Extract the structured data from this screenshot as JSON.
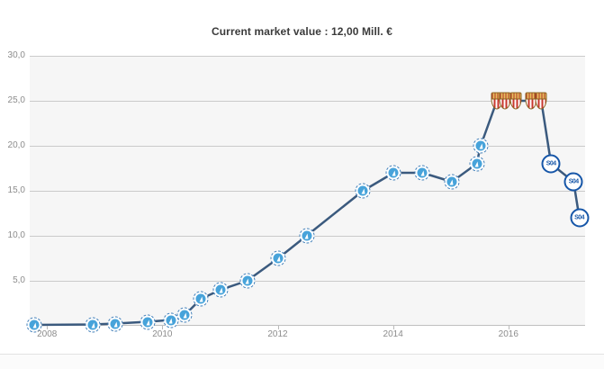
{
  "header": {
    "title": "Current market value : 12,00 Mill. €"
  },
  "chart_data": {
    "type": "line",
    "title": "Current market value : 12,00 Mill. €",
    "xlabel": "",
    "ylabel": "",
    "xlim": [
      2007.7,
      2017.33
    ],
    "ylim": [
      0,
      30
    ],
    "grid": true,
    "legend": "none",
    "line_color": "#3b5a7e",
    "plot_bg": "#f6f6f6",
    "grid_color": "#cbcbcb",
    "y_ticks": [
      {
        "value": 30,
        "label": "30,0"
      },
      {
        "value": 25,
        "label": "25,0"
      },
      {
        "value": 20,
        "label": "20,0"
      },
      {
        "value": 15,
        "label": "15,0"
      },
      {
        "value": 10,
        "label": "10,0"
      },
      {
        "value": 5,
        "label": "5,0"
      }
    ],
    "x_ticks": [
      {
        "year": 2008,
        "label": "2008"
      },
      {
        "year": 2010,
        "label": "2010"
      },
      {
        "year": 2012,
        "label": "2012"
      },
      {
        "year": 2014,
        "label": "2014"
      },
      {
        "year": 2016,
        "label": "2016"
      }
    ],
    "clubs": {
      "lightblue": {
        "badge": "light-blue-roundel-with-white-sail",
        "primary": "#47a3da",
        "label": ""
      },
      "redwhite": {
        "badge": "red-white-striped-shield-gold-crest",
        "primary": "#c8372d",
        "label": ""
      },
      "s04": {
        "badge": "blue-white-roundel",
        "primary": "#1656a8",
        "label": "S04"
      }
    },
    "points": [
      {
        "year": 2007.78,
        "value": 0.1,
        "club": "lightblue"
      },
      {
        "year": 2008.8,
        "value": 0.15,
        "club": "lightblue"
      },
      {
        "year": 2009.19,
        "value": 0.25,
        "club": "lightblue"
      },
      {
        "year": 2009.75,
        "value": 0.45,
        "club": "lightblue"
      },
      {
        "year": 2010.15,
        "value": 0.65,
        "club": "lightblue"
      },
      {
        "year": 2010.39,
        "value": 1.2,
        "club": "lightblue"
      },
      {
        "year": 2010.67,
        "value": 3.0,
        "club": "lightblue"
      },
      {
        "year": 2011.01,
        "value": 4.0,
        "club": "lightblue"
      },
      {
        "year": 2011.47,
        "value": 5.0,
        "club": "lightblue"
      },
      {
        "year": 2012.01,
        "value": 7.5,
        "club": "lightblue"
      },
      {
        "year": 2012.5,
        "value": 10.0,
        "club": "lightblue"
      },
      {
        "year": 2013.48,
        "value": 15.0,
        "club": "lightblue"
      },
      {
        "year": 2014.01,
        "value": 17.0,
        "club": "lightblue"
      },
      {
        "year": 2014.51,
        "value": 17.0,
        "club": "lightblue"
      },
      {
        "year": 2015.02,
        "value": 16.0,
        "club": "lightblue"
      },
      {
        "year": 2015.45,
        "value": 18.0,
        "club": "lightblue"
      },
      {
        "year": 2015.52,
        "value": 20.0,
        "club": "lightblue"
      },
      {
        "year": 2015.8,
        "value": 25.0,
        "club": "redwhite"
      },
      {
        "year": 2015.94,
        "value": 25.0,
        "club": "redwhite"
      },
      {
        "year": 2016.13,
        "value": 25.0,
        "club": "redwhite"
      },
      {
        "year": 2016.4,
        "value": 25.0,
        "club": "redwhite"
      },
      {
        "year": 2016.57,
        "value": 25.0,
        "club": "redwhite"
      },
      {
        "year": 2016.74,
        "value": 18.0,
        "club": "s04"
      },
      {
        "year": 2017.13,
        "value": 16.0,
        "club": "s04"
      },
      {
        "year": 2017.23,
        "value": 12.0,
        "club": "s04"
      }
    ]
  }
}
